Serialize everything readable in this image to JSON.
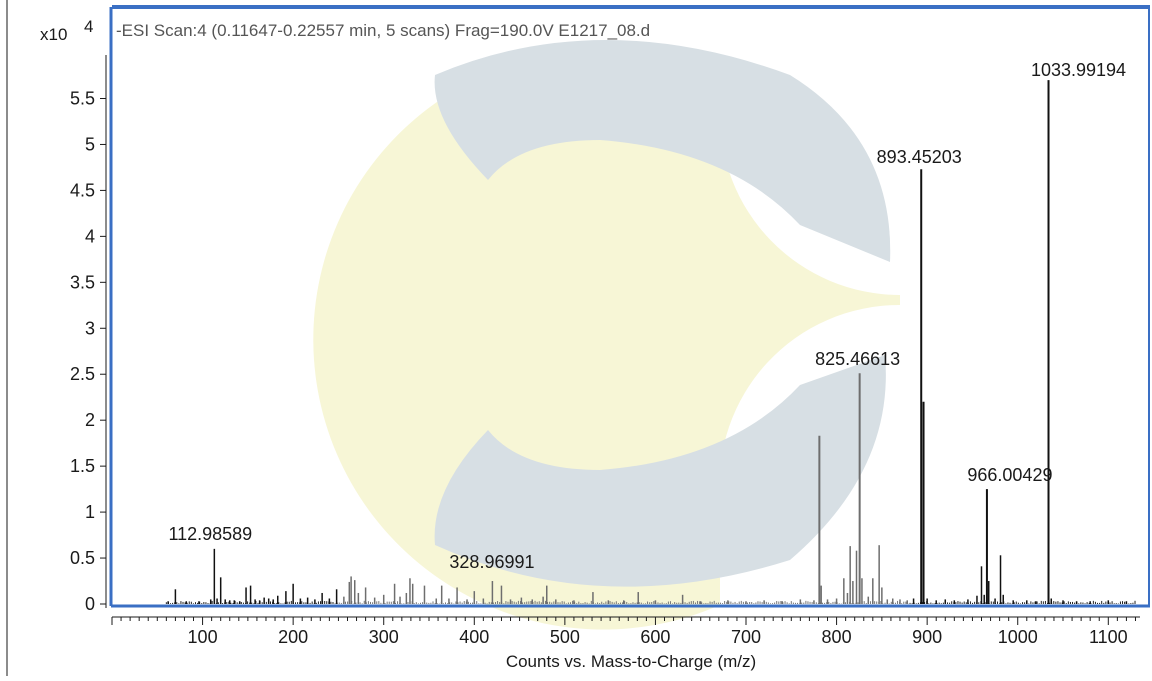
{
  "chart_data": {
    "type": "bar",
    "title": "-ESI Scan:4 (0.11647-0.22557 min, 5 scans) Frag=190.0V E1217_08.d",
    "xlabel": "Counts vs. Mass-to-Charge (m/z)",
    "ylabel": "",
    "y_exponent_label": "x10",
    "y_exponent_power": "4",
    "xlim": [
      0,
      1135
    ],
    "ylim": [
      0,
      5.95
    ],
    "x_ticks": [
      100,
      200,
      300,
      400,
      500,
      600,
      700,
      800,
      900,
      1000,
      1100
    ],
    "x_tick_labels": [
      "100",
      "200",
      "300",
      "400",
      "500",
      "600",
      "700",
      "800",
      "900",
      "1000",
      "1100"
    ],
    "y_ticks": [
      0,
      0.5,
      1,
      1.5,
      2,
      2.5,
      3,
      3.5,
      4,
      4.5,
      5,
      5.5
    ],
    "y_tick_labels": [
      "0",
      "0.5",
      "1",
      "1.5",
      "2",
      "2.5",
      "3",
      "3.5",
      "4",
      "4.5",
      "5",
      "5.5"
    ],
    "grid": false,
    "peak_labels": [
      {
        "mz": 112.98589,
        "text": "112.98589"
      },
      {
        "mz": 328.96991,
        "text": "328.96991"
      },
      {
        "mz": 825.46613,
        "text": "825.46613"
      },
      {
        "mz": 893.45203,
        "text": "893.45203"
      },
      {
        "mz": 966.00429,
        "text": "966.00429"
      },
      {
        "mz": 1033.99194,
        "text": "1033.99194"
      }
    ],
    "peaks": [
      {
        "mz": 62,
        "y": 0.03
      },
      {
        "mz": 70,
        "y": 0.16
      },
      {
        "mz": 82,
        "y": 0.03
      },
      {
        "mz": 96,
        "y": 0.03
      },
      {
        "mz": 109,
        "y": 0.05
      },
      {
        "mz": 112.99,
        "y": 0.6
      },
      {
        "mz": 116,
        "y": 0.06
      },
      {
        "mz": 120,
        "y": 0.29
      },
      {
        "mz": 125,
        "y": 0.05
      },
      {
        "mz": 130,
        "y": 0.04
      },
      {
        "mz": 135,
        "y": 0.04
      },
      {
        "mz": 141,
        "y": 0.03
      },
      {
        "mz": 148,
        "y": 0.18
      },
      {
        "mz": 153,
        "y": 0.2
      },
      {
        "mz": 158,
        "y": 0.05
      },
      {
        "mz": 163,
        "y": 0.04
      },
      {
        "mz": 168,
        "y": 0.07
      },
      {
        "mz": 173,
        "y": 0.06
      },
      {
        "mz": 178,
        "y": 0.05
      },
      {
        "mz": 183,
        "y": 0.09
      },
      {
        "mz": 192,
        "y": 0.14
      },
      {
        "mz": 200,
        "y": 0.22
      },
      {
        "mz": 208,
        "y": 0.06
      },
      {
        "mz": 216,
        "y": 0.07
      },
      {
        "mz": 224,
        "y": 0.05
      },
      {
        "mz": 232,
        "y": 0.12
      },
      {
        "mz": 240,
        "y": 0.06
      },
      {
        "mz": 248,
        "y": 0.16
      },
      {
        "mz": 256,
        "y": 0.08
      },
      {
        "mz": 262,
        "y": 0.24
      },
      {
        "mz": 264,
        "y": 0.3
      },
      {
        "mz": 268,
        "y": 0.26
      },
      {
        "mz": 272,
        "y": 0.12
      },
      {
        "mz": 280,
        "y": 0.18
      },
      {
        "mz": 290,
        "y": 0.07
      },
      {
        "mz": 300,
        "y": 0.1
      },
      {
        "mz": 312,
        "y": 0.22
      },
      {
        "mz": 318,
        "y": 0.08
      },
      {
        "mz": 325,
        "y": 0.12
      },
      {
        "mz": 328.97,
        "y": 0.28
      },
      {
        "mz": 332,
        "y": 0.22
      },
      {
        "mz": 345,
        "y": 0.2
      },
      {
        "mz": 358,
        "y": 0.06
      },
      {
        "mz": 364,
        "y": 0.2
      },
      {
        "mz": 372,
        "y": 0.06
      },
      {
        "mz": 381,
        "y": 0.18
      },
      {
        "mz": 392,
        "y": 0.05
      },
      {
        "mz": 400,
        "y": 0.14
      },
      {
        "mz": 410,
        "y": 0.06
      },
      {
        "mz": 420,
        "y": 0.25
      },
      {
        "mz": 430,
        "y": 0.2
      },
      {
        "mz": 440,
        "y": 0.05
      },
      {
        "mz": 452,
        "y": 0.07
      },
      {
        "mz": 464,
        "y": 0.05
      },
      {
        "mz": 476,
        "y": 0.08
      },
      {
        "mz": 480,
        "y": 0.2
      },
      {
        "mz": 490,
        "y": 0.05
      },
      {
        "mz": 510,
        "y": 0.04
      },
      {
        "mz": 531,
        "y": 0.13
      },
      {
        "mz": 548,
        "y": 0.04
      },
      {
        "mz": 565,
        "y": 0.04
      },
      {
        "mz": 581,
        "y": 0.13
      },
      {
        "mz": 600,
        "y": 0.04
      },
      {
        "mz": 630,
        "y": 0.1
      },
      {
        "mz": 650,
        "y": 0.03
      },
      {
        "mz": 680,
        "y": 0.04
      },
      {
        "mz": 700,
        "y": 0.03
      },
      {
        "mz": 720,
        "y": 0.04
      },
      {
        "mz": 740,
        "y": 0.03
      },
      {
        "mz": 760,
        "y": 0.05
      },
      {
        "mz": 775,
        "y": 0.04
      },
      {
        "mz": 781,
        "y": 1.83
      },
      {
        "mz": 783,
        "y": 0.2
      },
      {
        "mz": 790,
        "y": 0.05
      },
      {
        "mz": 800,
        "y": 0.06
      },
      {
        "mz": 808,
        "y": 0.28
      },
      {
        "mz": 812,
        "y": 0.12
      },
      {
        "mz": 815,
        "y": 0.63
      },
      {
        "mz": 818,
        "y": 0.25
      },
      {
        "mz": 822,
        "y": 0.58
      },
      {
        "mz": 825.47,
        "y": 2.51
      },
      {
        "mz": 828,
        "y": 0.28
      },
      {
        "mz": 835,
        "y": 0.08
      },
      {
        "mz": 840,
        "y": 0.28
      },
      {
        "mz": 847,
        "y": 0.64
      },
      {
        "mz": 850,
        "y": 0.18
      },
      {
        "mz": 856,
        "y": 0.05
      },
      {
        "mz": 862,
        "y": 0.06
      },
      {
        "mz": 870,
        "y": 0.05
      },
      {
        "mz": 878,
        "y": 0.04
      },
      {
        "mz": 885,
        "y": 0.06
      },
      {
        "mz": 893.45,
        "y": 4.73
      },
      {
        "mz": 896,
        "y": 2.2
      },
      {
        "mz": 900,
        "y": 0.06
      },
      {
        "mz": 910,
        "y": 0.04
      },
      {
        "mz": 920,
        "y": 0.05
      },
      {
        "mz": 930,
        "y": 0.04
      },
      {
        "mz": 945,
        "y": 0.05
      },
      {
        "mz": 955,
        "y": 0.09
      },
      {
        "mz": 960,
        "y": 0.41
      },
      {
        "mz": 963,
        "y": 0.1
      },
      {
        "mz": 966.0,
        "y": 1.25
      },
      {
        "mz": 968,
        "y": 0.25
      },
      {
        "mz": 975,
        "y": 0.06
      },
      {
        "mz": 981,
        "y": 0.53
      },
      {
        "mz": 984,
        "y": 0.1
      },
      {
        "mz": 995,
        "y": 0.04
      },
      {
        "mz": 1010,
        "y": 0.04
      },
      {
        "mz": 1020,
        "y": 0.03
      },
      {
        "mz": 1033.99,
        "y": 5.7
      },
      {
        "mz": 1037,
        "y": 0.06
      },
      {
        "mz": 1050,
        "y": 0.04
      },
      {
        "mz": 1065,
        "y": 0.03
      },
      {
        "mz": 1080,
        "y": 0.03
      },
      {
        "mz": 1100,
        "y": 0.04
      },
      {
        "mz": 1120,
        "y": 0.03
      }
    ]
  },
  "watermark": {
    "grey_color": "#d7dfe4",
    "yellow_color": "#f7f6d6"
  },
  "frame": {
    "accent_color": "#3a6fc4",
    "axis_color": "#1a1a1a"
  }
}
